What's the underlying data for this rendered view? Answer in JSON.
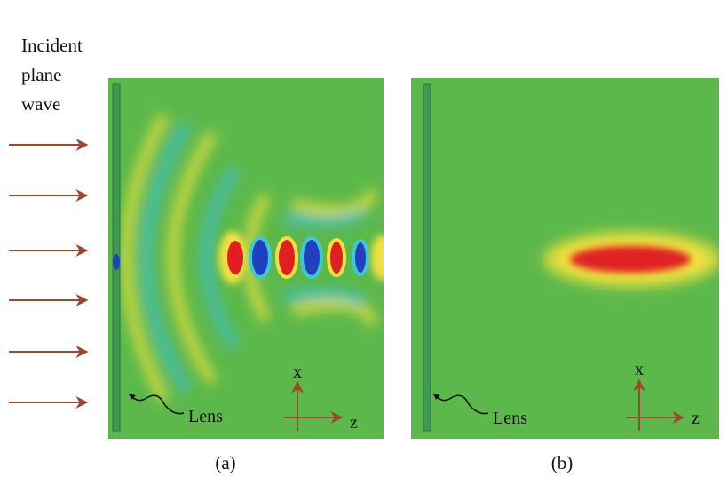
{
  "incident_label": [
    "Incident",
    "plane",
    "wave"
  ],
  "panels": [
    {
      "caption": "(a)",
      "lens_label": "Lens",
      "axis_x": "x",
      "axis_z": "z"
    },
    {
      "caption": "(b)",
      "lens_label": "Lens",
      "axis_x": "x",
      "axis_z": "z"
    }
  ]
}
